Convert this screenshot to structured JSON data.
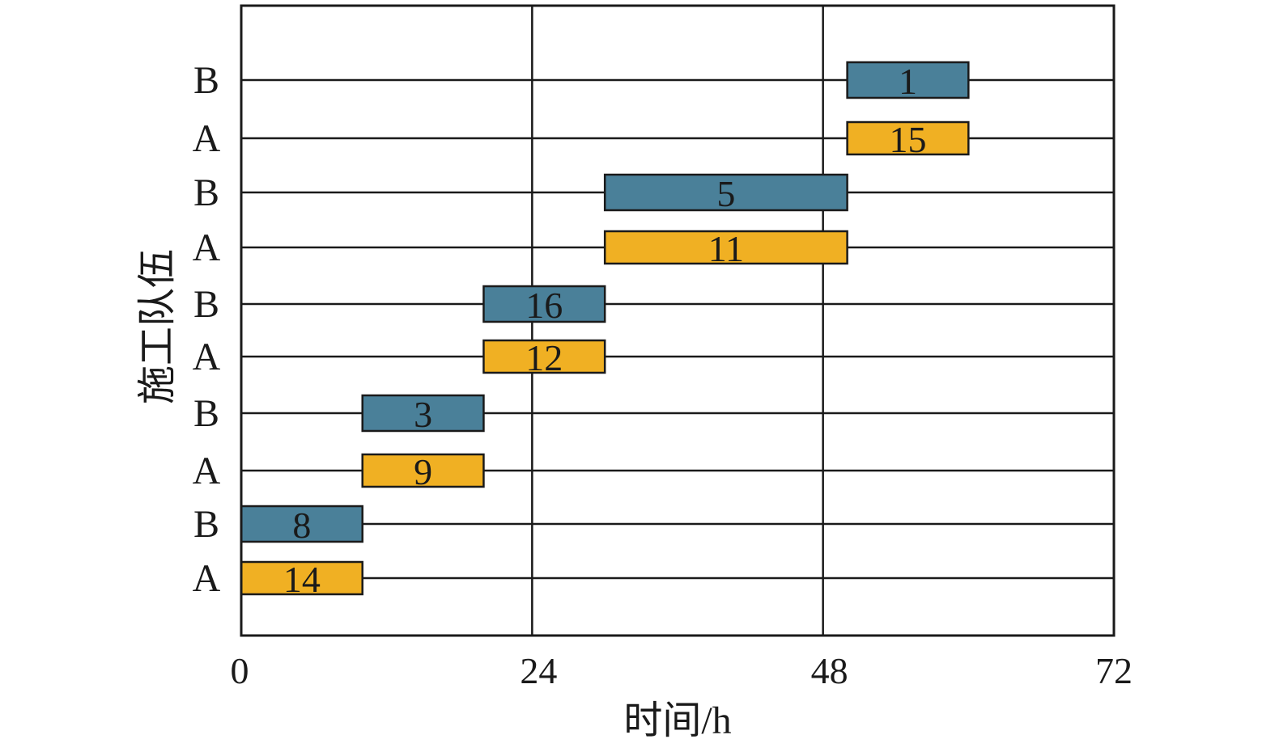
{
  "chart_data": {
    "type": "gantt",
    "title": "",
    "xlabel": "时间/h",
    "ylabel": "施工队伍",
    "xlim": [
      0,
      72
    ],
    "xticks": [
      0,
      24,
      48,
      72
    ],
    "grid": true,
    "colors": {
      "A": "#f0b023",
      "B": "#4a8099"
    },
    "rows": [
      "A",
      "B",
      "A",
      "B",
      "A",
      "B",
      "A",
      "B",
      "A",
      "B"
    ],
    "tasks": [
      {
        "row_index": 0,
        "team": "A",
        "label": "14",
        "start": 0,
        "end": 10
      },
      {
        "row_index": 1,
        "team": "B",
        "label": "8",
        "start": 0,
        "end": 10
      },
      {
        "row_index": 2,
        "team": "A",
        "label": "9",
        "start": 10,
        "end": 20
      },
      {
        "row_index": 3,
        "team": "B",
        "label": "3",
        "start": 10,
        "end": 20
      },
      {
        "row_index": 4,
        "team": "A",
        "label": "12",
        "start": 20,
        "end": 30
      },
      {
        "row_index": 5,
        "team": "B",
        "label": "16",
        "start": 20,
        "end": 30
      },
      {
        "row_index": 6,
        "team": "A",
        "label": "11",
        "start": 30,
        "end": 50
      },
      {
        "row_index": 7,
        "team": "B",
        "label": "5",
        "start": 30,
        "end": 50
      },
      {
        "row_index": 8,
        "team": "A",
        "label": "15",
        "start": 50,
        "end": 60
      },
      {
        "row_index": 9,
        "team": "B",
        "label": "1",
        "start": 50,
        "end": 60
      }
    ]
  }
}
